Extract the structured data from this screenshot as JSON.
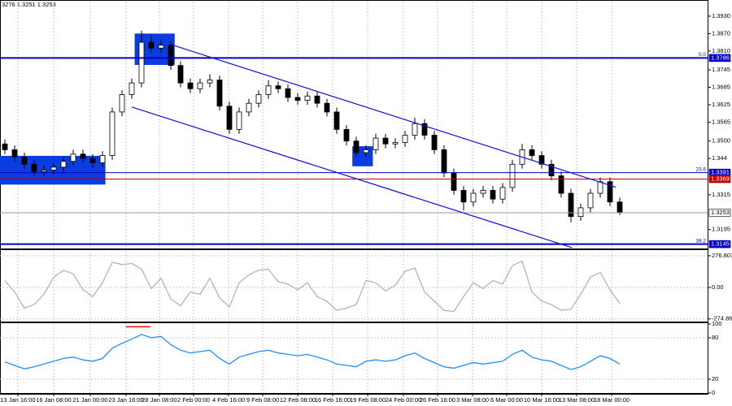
{
  "chart_data": [
    {
      "type": "candlestick",
      "header": "3276 1.3251 1.3253",
      "xlim": [
        -0.5,
        72
      ],
      "xticks": [
        {
          "value": 1.33,
          "label": "13 Jan 16:00"
        },
        {
          "value": 5,
          "label": "16 Jan 08:00"
        },
        {
          "value": 8.75,
          "label": "21 Jan 00:00"
        },
        {
          "value": 12.42,
          "label": "23 Jan 16:00"
        },
        {
          "value": 15.83,
          "label": "28 Jan 08:00"
        },
        {
          "value": 19.33,
          "label": "2 Feb 00:00"
        },
        {
          "value": 22.92,
          "label": "4 Feb 16:00"
        },
        {
          "value": 26.42,
          "label": "9 Feb 08:00"
        },
        {
          "value": 30,
          "label": "12 Feb 08:00"
        },
        {
          "value": 33.58,
          "label": "16 Feb 16:00"
        },
        {
          "value": 37.17,
          "label": "19 Feb 08:00"
        },
        {
          "value": 40.83,
          "label": "24 Feb 00:00"
        },
        {
          "value": 44.33,
          "label": "26 Feb 16:00"
        },
        {
          "value": 47.92,
          "label": "3 Mar 08:00"
        },
        {
          "value": 51.42,
          "label": "6 Mar 00:00"
        },
        {
          "value": 55,
          "label": "10 Mar 16:00"
        },
        {
          "value": 58.58,
          "label": "13 Mar 08:00"
        },
        {
          "value": 62.17,
          "label": "18 Mar 00:00"
        }
      ],
      "ylim": [
        1.313,
        1.398
      ],
      "yticks": [
        {
          "value": 1.393,
          "label": "1.3930"
        },
        {
          "value": 1.387,
          "label": "1.3870"
        },
        {
          "value": 1.381,
          "label": "1.3810"
        },
        1.3745,
        1.3685,
        1.3625,
        1.3565,
        {
          "value": 1.35,
          "label": "1.3500"
        },
        1.344,
        1.3315,
        1.3195
      ],
      "open": [
        1.349,
        1.347,
        1.3445,
        1.342,
        1.3395,
        1.34,
        1.341,
        1.343,
        1.3455,
        1.344,
        1.3425,
        1.345,
        1.36,
        1.366,
        1.37,
        1.384,
        1.382,
        1.383,
        1.376,
        1.37,
        1.368,
        1.37,
        1.371,
        1.362,
        1.354,
        1.36,
        1.363,
        1.366,
        1.369,
        1.368,
        1.365,
        1.364,
        1.3655,
        1.363,
        1.36,
        1.354,
        1.35,
        1.346,
        1.347,
        1.351,
        1.349,
        1.3495,
        1.352,
        1.356,
        1.352,
        1.347,
        1.339,
        1.333,
        1.329,
        1.332,
        1.333,
        1.33,
        1.334,
        1.342,
        1.347,
        1.345,
        1.342,
        1.338,
        1.332,
        1.324,
        1.327,
        1.332,
        1.336,
        1.329
      ],
      "high": [
        1.3505,
        1.3485,
        1.346,
        1.3435,
        1.3415,
        1.3425,
        1.3445,
        1.347,
        1.347,
        1.3455,
        1.3465,
        1.3615,
        1.3675,
        1.3715,
        1.388,
        1.3865,
        1.385,
        1.3845,
        1.3775,
        1.3715,
        1.3715,
        1.373,
        1.3725,
        1.3635,
        1.3615,
        1.3645,
        1.3675,
        1.371,
        1.3705,
        1.3695,
        1.3665,
        1.367,
        1.367,
        1.3645,
        1.3615,
        1.3555,
        1.3515,
        1.3485,
        1.3525,
        1.3525,
        1.351,
        1.3535,
        1.358,
        1.3575,
        1.3535,
        1.3485,
        1.3405,
        1.3345,
        1.3335,
        1.3345,
        1.3345,
        1.3355,
        1.3435,
        1.349,
        1.3485,
        1.3465,
        1.3435,
        1.3395,
        1.3335,
        1.3285,
        1.3335,
        1.3375,
        1.3375,
        1.3305
      ],
      "low": [
        1.3455,
        1.343,
        1.3405,
        1.338,
        1.338,
        1.3385,
        1.3395,
        1.3415,
        1.3425,
        1.341,
        1.341,
        1.3435,
        1.3585,
        1.3645,
        1.3685,
        1.3805,
        1.3805,
        1.3745,
        1.3685,
        1.3665,
        1.3665,
        1.3685,
        1.3605,
        1.3525,
        1.3525,
        1.3585,
        1.3615,
        1.3645,
        1.3665,
        1.3635,
        1.3625,
        1.3625,
        1.3615,
        1.3585,
        1.3525,
        1.3485,
        1.3445,
        1.3445,
        1.3455,
        1.3475,
        1.3475,
        1.348,
        1.3505,
        1.3505,
        1.3455,
        1.3375,
        1.3315,
        1.326,
        1.3275,
        1.3305,
        1.3285,
        1.3285,
        1.3325,
        1.3405,
        1.3435,
        1.3405,
        1.3365,
        1.3305,
        1.322,
        1.3225,
        1.3255,
        1.3305,
        1.3275,
        1.3245
      ],
      "close": [
        1.347,
        1.3445,
        1.342,
        1.3395,
        1.34,
        1.341,
        1.343,
        1.3455,
        1.344,
        1.3425,
        1.345,
        1.36,
        1.366,
        1.37,
        1.384,
        1.382,
        1.383,
        1.376,
        1.37,
        1.368,
        1.37,
        1.371,
        1.362,
        1.354,
        1.36,
        1.363,
        1.366,
        1.369,
        1.368,
        1.365,
        1.364,
        1.3655,
        1.363,
        1.36,
        1.354,
        1.35,
        1.346,
        1.347,
        1.351,
        1.349,
        1.3495,
        1.352,
        1.356,
        1.352,
        1.347,
        1.339,
        1.333,
        1.329,
        1.332,
        1.333,
        1.33,
        1.334,
        1.342,
        1.347,
        1.345,
        1.342,
        1.338,
        1.332,
        1.324,
        1.327,
        1.332,
        1.336,
        1.329,
        1.3253
      ],
      "levels": [
        {
          "value": 1.3786,
          "color": "#0000c8",
          "width": 2,
          "fib": "0.0"
        },
        {
          "value": 1.3391,
          "color": "#0000c8",
          "width": 1,
          "fib": "23.6"
        },
        {
          "value": 1.3369,
          "color": "#c00000",
          "width": 1
        },
        {
          "value": 1.3253,
          "color": "#9a9a9a",
          "width": 1
        },
        {
          "value": 1.3145,
          "color": "#0000c8",
          "width": 2,
          "fib": "38.2"
        }
      ],
      "channels": [
        {
          "x": [
            17.4,
            62.6
          ],
          "y": [
            1.3828,
            1.3341
          ],
          "color": "#1010e0"
        },
        {
          "x": [
            13,
            58.1
          ],
          "y": [
            1.3617,
            1.3133
          ],
          "color": "#1010e0"
        }
      ],
      "zones": [
        {
          "x": [
            -0.5,
            10.3
          ],
          "y": [
            1.3449,
            1.335
          ],
          "color": "#0a3ce0"
        },
        {
          "x": [
            13.3,
            17.4
          ],
          "y": [
            1.387,
            1.3762
          ],
          "color": "#0a3ce0"
        },
        {
          "x": [
            35.6,
            37.7
          ],
          "y": [
            1.3482,
            1.3413
          ],
          "color": "#0a3ce0"
        }
      ]
    },
    {
      "type": "line",
      "color": "#b4b4b4",
      "ylim": [
        -298,
        319
      ],
      "yticks": [
        276.8074,
        {
          "value": 0,
          "label": "0.00"
        },
        -274.865
      ],
      "values": [
        60,
        -40,
        -180,
        -150,
        -60,
        90,
        150,
        120,
        -20,
        -80,
        40,
        220,
        200,
        210,
        160,
        -10,
        80,
        -100,
        -160,
        -40,
        -60,
        80,
        -90,
        -170,
        40,
        110,
        150,
        160,
        50,
        30,
        -20,
        40,
        -80,
        -120,
        -200,
        -180,
        -150,
        60,
        40,
        -30,
        20,
        140,
        170,
        -40,
        -120,
        -200,
        -210,
        -80,
        40,
        -10,
        60,
        30,
        190,
        230,
        -40,
        -120,
        -150,
        -200,
        -190,
        -60,
        90,
        130,
        -20,
        -140
      ]
    },
    {
      "type": "line",
      "color": "#1e90ff",
      "ylim": [
        0,
        100
      ],
      "yticks": [
        100,
        80,
        20,
        0
      ],
      "values": [
        45,
        40,
        35,
        38,
        42,
        46,
        50,
        52,
        48,
        46,
        50,
        65,
        72,
        78,
        85,
        80,
        82,
        70,
        62,
        58,
        60,
        62,
        50,
        42,
        52,
        56,
        60,
        62,
        58,
        56,
        54,
        56,
        52,
        48,
        42,
        40,
        38,
        46,
        48,
        46,
        48,
        54,
        58,
        50,
        44,
        38,
        36,
        40,
        44,
        42,
        44,
        46,
        56,
        62,
        52,
        48,
        46,
        40,
        34,
        38,
        46,
        54,
        50,
        42
      ],
      "marker": {
        "x": [
          12.4,
          14.9
        ],
        "y": 96,
        "color": "#ff0000"
      }
    }
  ]
}
